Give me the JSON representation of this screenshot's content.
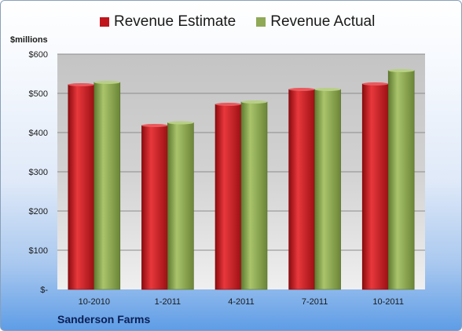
{
  "chart_data": {
    "type": "bar",
    "categories": [
      "10-2010",
      "1-2011",
      "4-2011",
      "7-2011",
      "10-2011"
    ],
    "series": [
      {
        "name": "Revenue Estimate",
        "color": "#c0161b",
        "values": [
          522,
          418,
          472,
          510,
          524
        ]
      },
      {
        "name": "Revenue Actual",
        "color": "#8fa957",
        "values": [
          528,
          425,
          478,
          510,
          558
        ]
      }
    ],
    "ylabel": "$millions",
    "ylim": [
      0,
      600
    ],
    "yticks": [
      0,
      100,
      200,
      300,
      400,
      500,
      600
    ],
    "ytick_labels": [
      "$-",
      "$100",
      "$200",
      "$300",
      "$400",
      "$500",
      "$600"
    ],
    "grid": true,
    "legend": "top",
    "footer": "Sanderson Farms"
  }
}
